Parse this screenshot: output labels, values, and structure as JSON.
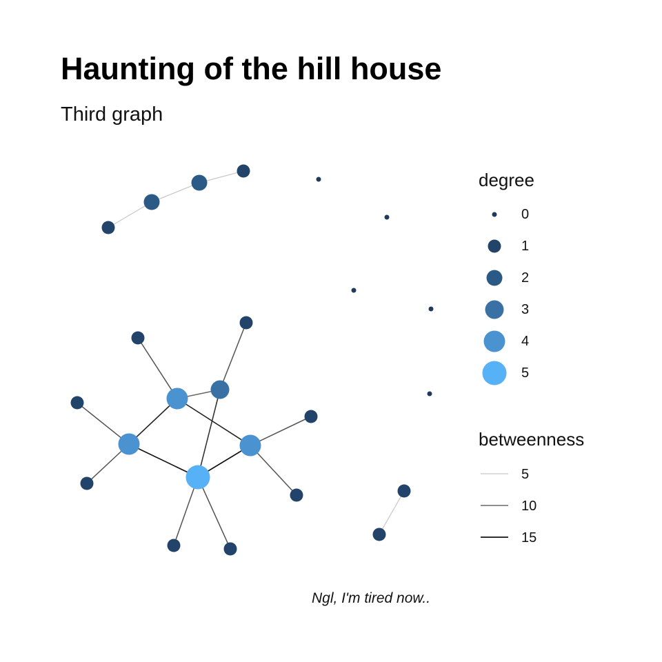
{
  "title": "Haunting of the hill house",
  "subtitle": "Third graph",
  "caption": "Ngl, I'm tired now..",
  "colors": {
    "degree_0": "#1f3a5a",
    "degree_1": "#22436a",
    "degree_2": "#2c5a86",
    "degree_3": "#3a71a4",
    "degree_4": "#4a92d0",
    "degree_5": "#56b1f7",
    "edge_low": "#c8c8c8",
    "edge_mid": "#666666",
    "edge_high": "#111111"
  },
  "legend": {
    "degree": {
      "title": "degree",
      "items": [
        {
          "label": "0",
          "degree": 0
        },
        {
          "label": "1",
          "degree": 1
        },
        {
          "label": "2",
          "degree": 2
        },
        {
          "label": "3",
          "degree": 3
        },
        {
          "label": "4",
          "degree": 4
        },
        {
          "label": "5",
          "degree": 5
        }
      ]
    },
    "betweenness": {
      "title": "betweenness",
      "items": [
        {
          "label": "5",
          "value": 5
        },
        {
          "label": "10",
          "value": 10
        },
        {
          "label": "15",
          "value": 15
        }
      ]
    }
  },
  "graph": {
    "nodes": [
      {
        "id": "p1",
        "degree": 1
      },
      {
        "id": "p2",
        "degree": 2
      },
      {
        "id": "p3",
        "degree": 2
      },
      {
        "id": "p4",
        "degree": 1
      },
      {
        "id": "i1",
        "degree": 0
      },
      {
        "id": "i2",
        "degree": 0
      },
      {
        "id": "i3",
        "degree": 0
      },
      {
        "id": "i4",
        "degree": 0
      },
      {
        "id": "i5",
        "degree": 0
      },
      {
        "id": "d1",
        "degree": 1
      },
      {
        "id": "d2",
        "degree": 1
      },
      {
        "id": "h1",
        "degree": 4
      },
      {
        "id": "h2",
        "degree": 3
      },
      {
        "id": "h3",
        "degree": 4
      },
      {
        "id": "h4",
        "degree": 4
      },
      {
        "id": "h5",
        "degree": 5
      },
      {
        "id": "l1",
        "degree": 1
      },
      {
        "id": "l2",
        "degree": 1
      },
      {
        "id": "l3",
        "degree": 1
      },
      {
        "id": "l4",
        "degree": 1
      },
      {
        "id": "l5",
        "degree": 1
      },
      {
        "id": "l6",
        "degree": 1
      },
      {
        "id": "l7",
        "degree": 1
      },
      {
        "id": "l8",
        "degree": 1
      }
    ],
    "edges": [
      {
        "source": "p1",
        "target": "p2",
        "betweenness": 3
      },
      {
        "source": "p2",
        "target": "p3",
        "betweenness": 4
      },
      {
        "source": "p3",
        "target": "p4",
        "betweenness": 3
      },
      {
        "source": "d1",
        "target": "d2",
        "betweenness": 1
      },
      {
        "source": "l1",
        "target": "h1",
        "betweenness": 11
      },
      {
        "source": "h1",
        "target": "h2",
        "betweenness": 10
      },
      {
        "source": "l2",
        "target": "h2",
        "betweenness": 11
      },
      {
        "source": "h1",
        "target": "h3",
        "betweenness": 14
      },
      {
        "source": "l3",
        "target": "h3",
        "betweenness": 11
      },
      {
        "source": "l4",
        "target": "h3",
        "betweenness": 11
      },
      {
        "source": "h1",
        "target": "h4",
        "betweenness": 14
      },
      {
        "source": "h2",
        "target": "h5",
        "betweenness": 13
      },
      {
        "source": "h3",
        "target": "h5",
        "betweenness": 15
      },
      {
        "source": "h4",
        "target": "h5",
        "betweenness": 15
      },
      {
        "source": "l5",
        "target": "h4",
        "betweenness": 11
      },
      {
        "source": "l6",
        "target": "h4",
        "betweenness": 11
      },
      {
        "source": "l7",
        "target": "h5",
        "betweenness": 11
      },
      {
        "source": "l8",
        "target": "h5",
        "betweenness": 11
      }
    ]
  }
}
